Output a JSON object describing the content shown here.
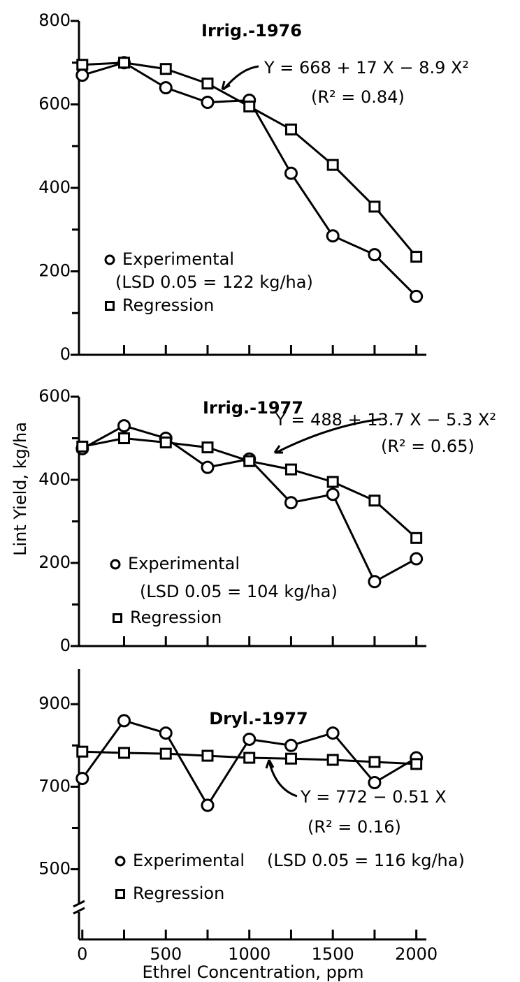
{
  "chart_data": [
    {
      "type": "line",
      "title": "Irrig.-1976",
      "equation": "Y = 668 + 17 X − 8.9 X²",
      "r2": "(R² = 0.84)",
      "lsd": "(LSD 0.05 = 122 kg/ha)",
      "x": [
        0,
        250,
        500,
        750,
        1000,
        1250,
        1500,
        1750,
        2000
      ],
      "series": [
        {
          "name": "Experimental",
          "marker": "circle",
          "color": "#000000",
          "values": [
            670,
            700,
            640,
            605,
            610,
            435,
            285,
            240,
            140
          ]
        },
        {
          "name": "Regression",
          "marker": "square",
          "color": "#000000",
          "values": [
            695,
            700,
            685,
            650,
            595,
            540,
            455,
            355,
            235
          ]
        }
      ],
      "xlim": [
        -20,
        2060
      ],
      "xminorticks": [
        250,
        500,
        750,
        1000,
        1250,
        1500,
        1750,
        2000
      ],
      "ylim": [
        0,
        800
      ],
      "yticks": [
        0,
        200,
        400,
        600,
        800
      ],
      "yminorticks": [
        100,
        300,
        500,
        700
      ]
    },
    {
      "type": "line",
      "title": "Irrig.-1977",
      "equation": "Y = 488 + 13.7 X − 5.3 X²",
      "r2": "(R² = 0.65)",
      "lsd": "(LSD 0.05 = 104 kg/ha)",
      "y_label": "Lint Yield, kg/ha",
      "x": [
        0,
        250,
        500,
        750,
        1000,
        1250,
        1500,
        1750,
        2000
      ],
      "series": [
        {
          "name": "Experimental",
          "marker": "circle",
          "color": "#000000",
          "values": [
            475,
            530,
            500,
            430,
            450,
            345,
            365,
            155,
            210
          ]
        },
        {
          "name": "Regression",
          "marker": "square",
          "color": "#000000",
          "values": [
            480,
            500,
            490,
            478,
            445,
            425,
            395,
            350,
            260
          ]
        }
      ],
      "xlim": [
        -20,
        2060
      ],
      "xminorticks": [
        250,
        500,
        750,
        1000,
        1250,
        1500,
        1750,
        2000
      ],
      "ylim": [
        0,
        600
      ],
      "yticks": [
        0,
        200,
        400,
        600
      ],
      "yminorticks": [
        100,
        300,
        500
      ]
    },
    {
      "type": "line",
      "title": "Dryl.-1977",
      "equation": "Y = 772 − 0.51 X",
      "r2": "(R² = 0.16)",
      "lsd": "(LSD 0.05 = 116 kg/ha)",
      "x_label": "Ethrel Concentration, ppm",
      "x": [
        0,
        250,
        500,
        750,
        1000,
        1250,
        1500,
        1750,
        2000
      ],
      "series": [
        {
          "name": "Experimental",
          "marker": "circle",
          "color": "#000000",
          "values": [
            720,
            860,
            830,
            655,
            815,
            800,
            830,
            710,
            770
          ]
        },
        {
          "name": "Regression",
          "marker": "square",
          "color": "#000000",
          "values": [
            785,
            782,
            780,
            775,
            770,
            768,
            765,
            760,
            755
          ]
        }
      ],
      "xlim": [
        -20,
        2060
      ],
      "xticks": [
        0,
        500,
        1000,
        1500,
        2000
      ],
      "xminorticks": [
        250,
        750,
        1250,
        1750
      ],
      "ylim": [
        330,
        985
      ],
      "yticks": [
        500,
        700,
        900
      ],
      "yminorticks": [
        600,
        800
      ]
    }
  ]
}
